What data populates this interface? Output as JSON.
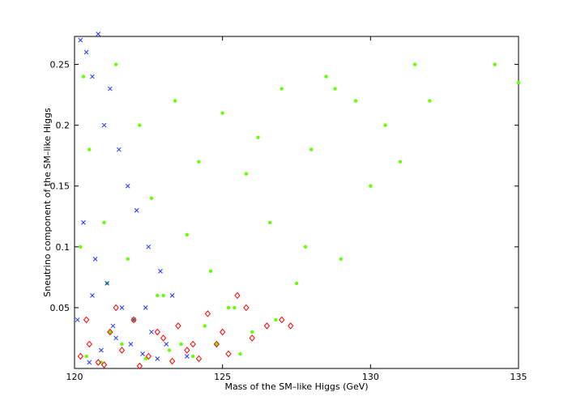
{
  "chart_data": {
    "type": "scatter",
    "xlabel": "Mass of the SM–like Higgs (GeV)",
    "ylabel": "Sneutrino component of the SM–like Higgs",
    "xlim": [
      120,
      135
    ],
    "xticks": [
      120,
      125,
      130,
      135
    ],
    "ylim": [
      0,
      0.273
    ],
    "yticks": [
      0.05,
      0.1,
      0.15,
      0.2,
      0.25
    ],
    "grid": false,
    "series": [
      {
        "color": "#66ff00",
        "marker": "dot",
        "x": [
          120.3,
          120.5,
          121.0,
          121.4,
          121.8,
          122.2,
          122.6,
          123.0,
          123.4,
          123.8,
          124.2,
          124.6,
          125.0,
          125.4,
          125.8,
          126.2,
          126.6,
          127.0,
          127.5,
          128.0,
          128.5,
          129.0,
          129.5,
          130.0,
          130.5,
          131.0,
          131.5,
          132.0,
          134.2,
          135.0,
          121.2,
          122.0,
          122.8,
          123.6,
          124.4,
          125.2,
          126.0,
          126.8,
          127.8,
          128.8,
          120.4,
          120.9,
          121.6,
          122.4,
          123.2,
          124.0,
          124.8,
          125.6,
          120.2,
          121.1
        ],
        "values": [
          0.24,
          0.18,
          0.12,
          0.25,
          0.09,
          0.2,
          0.14,
          0.06,
          0.22,
          0.11,
          0.17,
          0.08,
          0.21,
          0.05,
          0.16,
          0.19,
          0.12,
          0.23,
          0.07,
          0.18,
          0.24,
          0.09,
          0.22,
          0.15,
          0.2,
          0.17,
          0.25,
          0.22,
          0.25,
          0.235,
          0.03,
          0.04,
          0.06,
          0.02,
          0.035,
          0.05,
          0.03,
          0.04,
          0.1,
          0.23,
          0.01,
          0.005,
          0.02,
          0.008,
          0.015,
          0.01,
          0.02,
          0.012,
          0.1,
          0.07
        ]
      },
      {
        "color": "#2233ff",
        "marker": "x",
        "x": [
          120.2,
          120.4,
          120.6,
          120.8,
          121.0,
          121.2,
          121.5,
          121.8,
          122.1,
          122.5,
          122.9,
          123.3,
          120.3,
          120.7,
          121.1,
          121.6,
          122.0,
          122.6,
          123.1,
          123.8,
          120.5,
          120.9,
          121.4,
          122.3,
          122.8,
          120.1,
          120.6,
          121.3,
          121.9,
          122.4
        ],
        "values": [
          0.27,
          0.26,
          0.24,
          0.275,
          0.2,
          0.23,
          0.18,
          0.15,
          0.13,
          0.1,
          0.08,
          0.06,
          0.12,
          0.09,
          0.07,
          0.05,
          0.04,
          0.03,
          0.02,
          0.01,
          0.005,
          0.015,
          0.025,
          0.012,
          0.008,
          0.04,
          0.06,
          0.035,
          0.02,
          0.05
        ]
      },
      {
        "color": "#ff0000",
        "marker": "diamond",
        "x": [
          120.2,
          120.5,
          120.8,
          121.2,
          121.6,
          122.0,
          122.5,
          123.0,
          123.5,
          124.0,
          124.5,
          125.0,
          125.5,
          126.0,
          126.5,
          127.0,
          127.3,
          121.0,
          122.2,
          123.3,
          124.2,
          125.2,
          125.8,
          120.4,
          121.4,
          122.8,
          123.8,
          124.8
        ],
        "values": [
          0.01,
          0.02,
          0.005,
          0.03,
          0.015,
          0.04,
          0.01,
          0.025,
          0.035,
          0.02,
          0.045,
          0.03,
          0.06,
          0.025,
          0.035,
          0.04,
          0.035,
          0.003,
          0.002,
          0.006,
          0.008,
          0.012,
          0.05,
          0.04,
          0.05,
          0.03,
          0.015,
          0.02
        ]
      }
    ]
  }
}
